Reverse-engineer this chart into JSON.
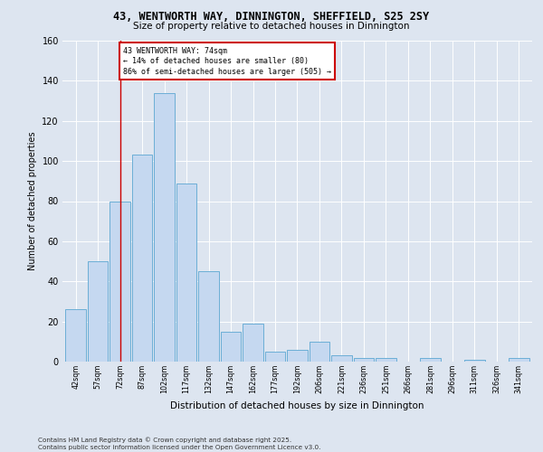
{
  "title1": "43, WENTWORTH WAY, DINNINGTON, SHEFFIELD, S25 2SY",
  "title2": "Size of property relative to detached houses in Dinnington",
  "xlabel": "Distribution of detached houses by size in Dinnington",
  "ylabel": "Number of detached properties",
  "categories": [
    "42sqm",
    "57sqm",
    "72sqm",
    "87sqm",
    "102sqm",
    "117sqm",
    "132sqm",
    "147sqm",
    "162sqm",
    "177sqm",
    "192sqm",
    "206sqm",
    "221sqm",
    "236sqm",
    "251sqm",
    "266sqm",
    "281sqm",
    "296sqm",
    "311sqm",
    "326sqm",
    "341sqm"
  ],
  "values": [
    26,
    50,
    80,
    103,
    134,
    89,
    45,
    15,
    19,
    5,
    6,
    10,
    3,
    2,
    2,
    0,
    2,
    0,
    1,
    0,
    2
  ],
  "bar_color": "#c5d8f0",
  "bar_edge_color": "#6baed6",
  "vline_x": 2,
  "vline_color": "#cc0000",
  "annotation_text": "43 WENTWORTH WAY: 74sqm\n← 14% of detached houses are smaller (80)\n86% of semi-detached houses are larger (505) →",
  "annotation_box_facecolor": "#ffffff",
  "annotation_box_edgecolor": "#cc0000",
  "bg_color": "#dde5f0",
  "plot_bg_color": "#dde5f0",
  "grid_color": "#ffffff",
  "ylim": [
    0,
    160
  ],
  "yticks": [
    0,
    20,
    40,
    60,
    80,
    100,
    120,
    140,
    160
  ],
  "footer1": "Contains HM Land Registry data © Crown copyright and database right 2025.",
  "footer2": "Contains public sector information licensed under the Open Government Licence v3.0."
}
